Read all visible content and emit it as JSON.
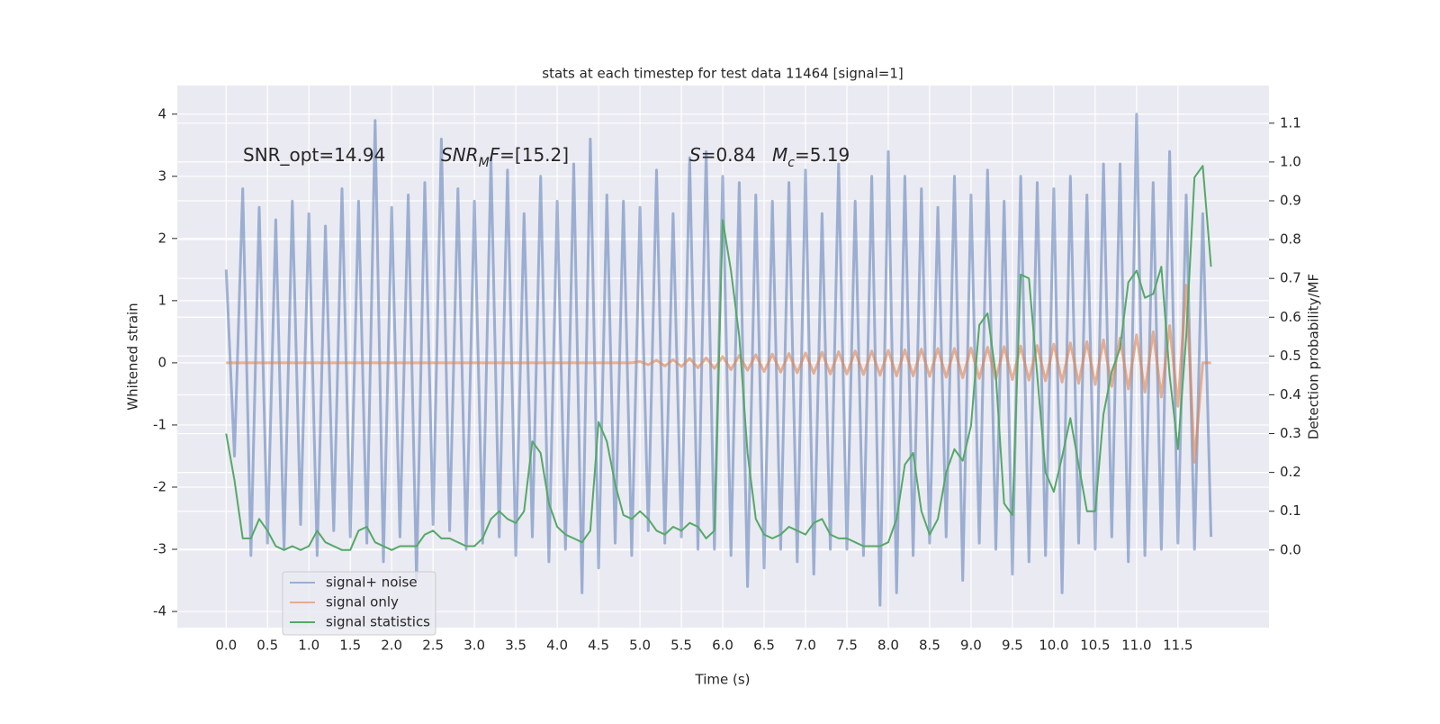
{
  "chart_data": {
    "type": "line",
    "title": "stats at each timestep for test data 11464 [signal=1]",
    "xlabel": "Time (s)",
    "ylabel": "Whitened strain",
    "y2label": "Detection probability/MF",
    "annotations": [
      [
        {
          "text": "SNR_opt=14.94",
          "italic": false,
          "sub": false
        }
      ],
      [
        {
          "text": "SNR",
          "italic": true,
          "sub": false
        },
        {
          "text": "M",
          "italic": true,
          "sub": true
        },
        {
          "text": "F",
          "italic": true,
          "sub": false
        },
        {
          "text": "=[15.2]",
          "italic": false,
          "sub": false
        }
      ],
      [
        {
          "text": "S",
          "italic": true,
          "sub": false
        },
        {
          "text": "=0.84",
          "italic": false,
          "sub": false
        }
      ],
      [
        {
          "text": "M",
          "italic": true,
          "sub": false
        },
        {
          "text": "c",
          "italic": true,
          "sub": true
        },
        {
          "text": "=5.19",
          "italic": false,
          "sub": false
        }
      ]
    ],
    "x": [
      0,
      0.1,
      0.2,
      0.3,
      0.4,
      0.5,
      0.6,
      0.7,
      0.8,
      0.9,
      1,
      1.1,
      1.2,
      1.3,
      1.4,
      1.5,
      1.6,
      1.7,
      1.8,
      1.9,
      2,
      2.1,
      2.2,
      2.3,
      2.4,
      2.5,
      2.6,
      2.7,
      2.8,
      2.9,
      3,
      3.1,
      3.2,
      3.3,
      3.4,
      3.5,
      3.6,
      3.7,
      3.8,
      3.9,
      4,
      4.1,
      4.2,
      4.3,
      4.4,
      4.5,
      4.6,
      4.7,
      4.8,
      4.9,
      5,
      5.1,
      5.2,
      5.3,
      5.4,
      5.5,
      5.6,
      5.7,
      5.8,
      5.9,
      6,
      6.1,
      6.2,
      6.3,
      6.4,
      6.5,
      6.6,
      6.7,
      6.8,
      6.9,
      7,
      7.1,
      7.2,
      7.3,
      7.4,
      7.5,
      7.6,
      7.7,
      7.8,
      7.9,
      8,
      8.1,
      8.2,
      8.3,
      8.4,
      8.5,
      8.6,
      8.7,
      8.8,
      8.9,
      9,
      9.1,
      9.2,
      9.3,
      9.4,
      9.5,
      9.6,
      9.7,
      9.8,
      9.9,
      10,
      10.1,
      10.2,
      10.3,
      10.4,
      10.5,
      10.6,
      10.7,
      10.8,
      10.9,
      11,
      11.1,
      11.2,
      11.3,
      11.4,
      11.5,
      11.6,
      11.7,
      11.8,
      11.9
    ],
    "series": [
      {
        "name": "signal+ noise",
        "color": "#4c72b0",
        "opacity": 0.5,
        "values": [
          1.5,
          -1.5,
          2.8,
          -3.1,
          2.5,
          -2.9,
          2.3,
          -3.0,
          2.6,
          -2.6,
          2.4,
          -3.1,
          2.2,
          -2.7,
          2.8,
          -2.8,
          2.6,
          -2.9,
          3.9,
          -3.2,
          2.5,
          -2.8,
          2.7,
          -3.5,
          2.9,
          -2.6,
          3.6,
          -2.7,
          2.8,
          -3.0,
          2.6,
          -2.9,
          3.3,
          -2.8,
          3.1,
          -3.1,
          2.4,
          -2.8,
          3.0,
          -3.2,
          2.6,
          -3.0,
          3.2,
          -3.7,
          3.6,
          -3.3,
          2.7,
          -2.9,
          2.6,
          -3.1,
          2.5,
          -2.7,
          3.1,
          -2.9,
          2.4,
          -2.8,
          3.3,
          -3.0,
          3.4,
          -3.0,
          3.0,
          -3.1,
          2.9,
          -3.6,
          2.7,
          -3.3,
          2.6,
          -3.0,
          2.9,
          -3.2,
          3.1,
          -3.4,
          2.4,
          -3.0,
          3.2,
          -3.0,
          2.6,
          -3.1,
          3.0,
          -3.9,
          3.4,
          -3.7,
          3.0,
          -3.1,
          2.8,
          -2.9,
          2.5,
          -2.8,
          3.0,
          -3.5,
          2.7,
          -2.9,
          3.1,
          -3.0,
          2.6,
          -3.4,
          3.0,
          -3.2,
          2.9,
          -3.1,
          2.8,
          -3.7,
          3.0,
          -2.9,
          2.7,
          -3.0,
          3.2,
          -2.8,
          3.2,
          -3.2,
          4.0,
          -3.1,
          2.9,
          -3.0,
          3.4,
          -2.9,
          2.7,
          -3.0,
          2.4,
          -2.8
        ]
      },
      {
        "name": "signal only",
        "color": "#dd8452",
        "opacity": 0.6,
        "values": [
          0,
          0,
          0,
          0,
          0,
          0,
          0,
          0,
          0,
          0,
          0,
          0,
          0,
          0,
          0,
          0,
          0,
          0,
          0,
          0,
          0,
          0,
          0,
          0,
          0,
          0,
          0,
          0,
          0,
          0,
          0,
          0,
          0,
          0,
          0,
          0,
          0,
          0,
          0,
          0,
          0,
          0,
          0,
          0,
          0,
          0,
          0,
          0,
          0,
          0,
          0.02,
          -0.03,
          0.04,
          -0.05,
          0.05,
          -0.06,
          0.07,
          -0.08,
          0.08,
          -0.09,
          0.1,
          -0.11,
          0.12,
          -0.12,
          0.13,
          -0.14,
          0.14,
          -0.15,
          0.15,
          -0.16,
          0.16,
          -0.17,
          0.17,
          -0.18,
          0.18,
          -0.18,
          0.19,
          -0.19,
          0.19,
          -0.2,
          0.2,
          -0.21,
          0.21,
          -0.21,
          0.22,
          -0.22,
          0.23,
          -0.23,
          0.23,
          -0.24,
          0.24,
          -0.25,
          0.25,
          -0.26,
          0.26,
          -0.27,
          0.27,
          -0.28,
          0.28,
          -0.29,
          0.3,
          -0.31,
          0.32,
          -0.33,
          0.34,
          -0.35,
          0.37,
          -0.38,
          0.4,
          -0.42,
          0.45,
          -0.47,
          0.5,
          -0.55,
          0.6,
          -0.7,
          1.25,
          -1.6,
          0,
          0
        ]
      },
      {
        "name": "signal statistics",
        "color": "#55a868",
        "opacity": 1,
        "axis": "y2",
        "values": [
          0.3,
          0.18,
          0.03,
          0.03,
          0.08,
          0.05,
          0.01,
          0,
          0.01,
          0,
          0.01,
          0.05,
          0.02,
          0.01,
          0,
          0,
          0.05,
          0.06,
          0.02,
          0.01,
          0,
          0.01,
          0.01,
          0.01,
          0.04,
          0.05,
          0.03,
          0.03,
          0.02,
          0.01,
          0.01,
          0.03,
          0.08,
          0.1,
          0.08,
          0.07,
          0.1,
          0.28,
          0.25,
          0.12,
          0.06,
          0.04,
          0.03,
          0.02,
          0.05,
          0.33,
          0.28,
          0.17,
          0.09,
          0.08,
          0.1,
          0.08,
          0.05,
          0.04,
          0.06,
          0.05,
          0.07,
          0.06,
          0.03,
          0.05,
          0.85,
          0.72,
          0.55,
          0.25,
          0.08,
          0.04,
          0.03,
          0.04,
          0.06,
          0.05,
          0.04,
          0.07,
          0.08,
          0.04,
          0.03,
          0.03,
          0.02,
          0.01,
          0.01,
          0.01,
          0.02,
          0.08,
          0.22,
          0.25,
          0.1,
          0.04,
          0.08,
          0.2,
          0.26,
          0.23,
          0.32,
          0.58,
          0.61,
          0.45,
          0.12,
          0.09,
          0.71,
          0.7,
          0.45,
          0.2,
          0.15,
          0.24,
          0.34,
          0.22,
          0.1,
          0.1,
          0.35,
          0.46,
          0.52,
          0.69,
          0.72,
          0.65,
          0.66,
          0.73,
          0.45,
          0.26,
          0.55,
          0.96,
          0.99,
          0.73
        ]
      }
    ],
    "xlim": [
      -0.59,
      12.6
    ],
    "xticks": [
      {
        "value": 0,
        "label": "0.0"
      },
      0.5,
      {
        "value": 1,
        "label": "1.0"
      },
      1.5,
      {
        "value": 2,
        "label": "2.0"
      },
      2.5,
      {
        "value": 3,
        "label": "3.0"
      },
      3.5,
      {
        "value": 4,
        "label": "4.0"
      },
      4.5,
      {
        "value": 5,
        "label": "5.0"
      },
      5.5,
      {
        "value": 6,
        "label": "6.0"
      },
      6.5,
      {
        "value": 7,
        "label": "7.0"
      },
      7.5,
      {
        "value": 8,
        "label": "8.0"
      },
      8.5,
      {
        "value": 9,
        "label": "9.0"
      },
      9.5,
      {
        "value": 10,
        "label": "10.0"
      },
      10.5,
      {
        "value": 11,
        "label": "11.0"
      },
      11.5
    ],
    "ylim": [
      -4.26,
      4.46
    ],
    "yticks": [
      -4,
      -3,
      -2,
      -1,
      0,
      1,
      2,
      3,
      4
    ],
    "y2lim": [
      -0.2,
      1.197
    ],
    "y2ticks": [
      {
        "value": 0,
        "label": "0.0"
      },
      0.1,
      0.2,
      0.3,
      0.4,
      0.5,
      0.6,
      0.7,
      0.8,
      0.9,
      {
        "value": 1,
        "label": "1.0"
      },
      1.1
    ],
    "grid": true,
    "legend": "lower left"
  }
}
